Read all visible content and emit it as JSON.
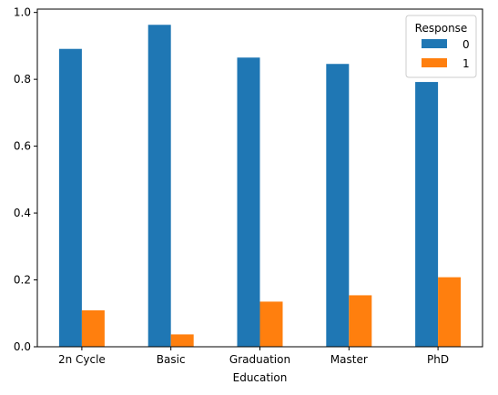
{
  "chart_data": {
    "type": "bar",
    "title": "",
    "xlabel": "Education",
    "ylabel": "",
    "categories": [
      "2n Cycle",
      "Basic",
      "Graduation",
      "Master",
      "PhD"
    ],
    "series": [
      {
        "name": "0",
        "values": [
          0.891,
          0.963,
          0.865,
          0.846,
          0.792
        ],
        "color": "#1f77b4"
      },
      {
        "name": "1",
        "values": [
          0.109,
          0.037,
          0.135,
          0.154,
          0.208
        ],
        "color": "#ff7f0e"
      }
    ],
    "ylim": [
      0,
      1.01
    ],
    "yticks": [
      0.0,
      0.2,
      0.4,
      0.6,
      0.8,
      1.0
    ],
    "ytick_labels": [
      "0.0",
      "0.2",
      "0.4",
      "0.6",
      "0.8",
      "1.0"
    ],
    "grid": false,
    "legend": {
      "title": "Response",
      "placement": "top-right"
    }
  }
}
